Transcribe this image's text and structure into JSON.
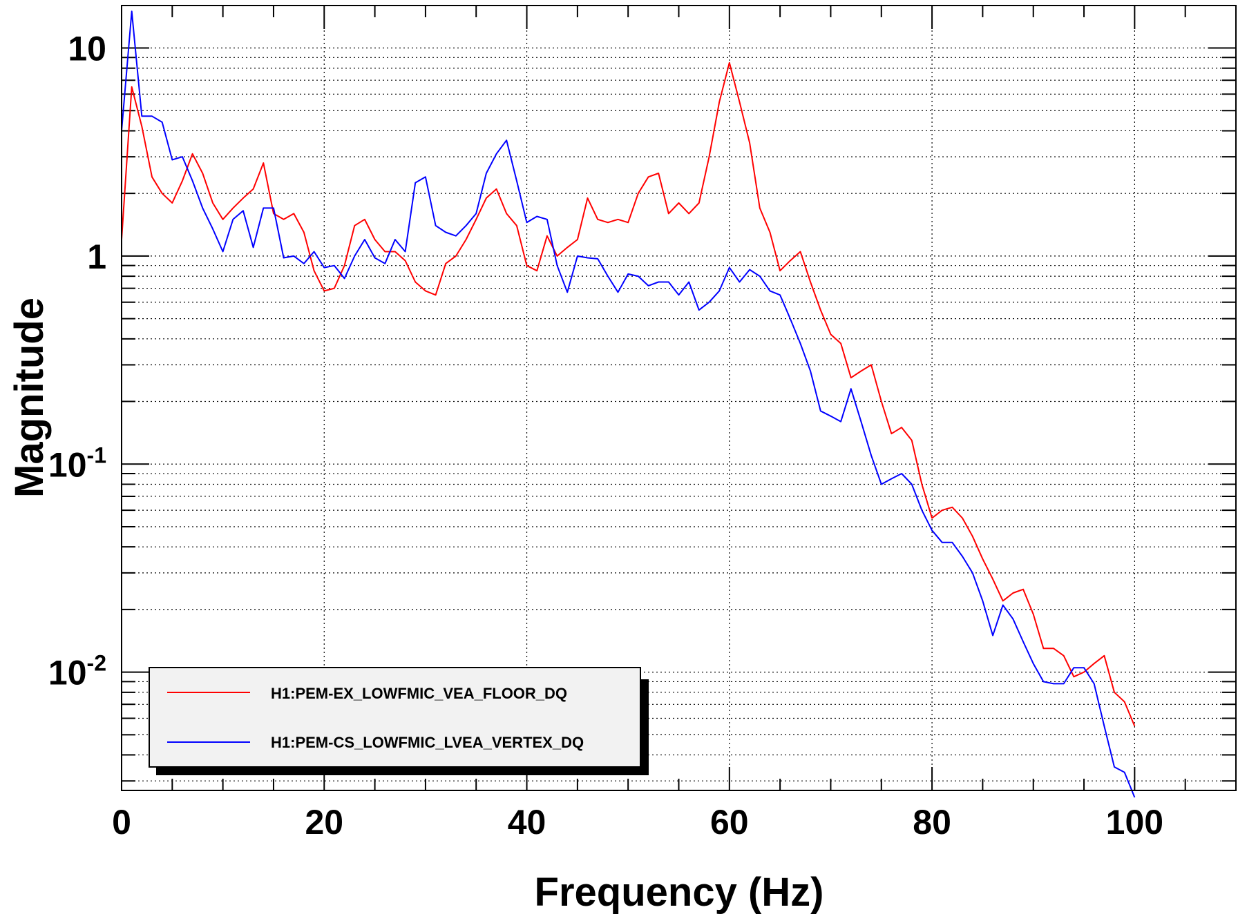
{
  "chart_data": {
    "type": "line",
    "xlabel": "Frequency (Hz)",
    "ylabel": "Magnitude",
    "xlim": [
      0,
      110
    ],
    "ylim": [
      0.0027,
      16
    ],
    "yscale": "log",
    "grid": true,
    "legend_position": "bottom-left",
    "x_ticks": [
      {
        "value": 0,
        "label": "0"
      },
      {
        "value": 20,
        "label": "20"
      },
      {
        "value": 40,
        "label": "40"
      },
      {
        "value": 60,
        "label": "60"
      },
      {
        "value": 80,
        "label": "80"
      },
      {
        "value": 100,
        "label": "100"
      }
    ],
    "y_ticks": [
      {
        "value": 10,
        "base": "10",
        "exp": ""
      },
      {
        "value": 1,
        "base": "1",
        "exp": ""
      },
      {
        "value": 0.1,
        "base": "10",
        "exp": "-1"
      },
      {
        "value": 0.01,
        "base": "10",
        "exp": "-2"
      }
    ],
    "series": [
      {
        "name": "H1:PEM-EX_LOWFMIC_VEA_FLOOR_DQ",
        "color": "#ff0000",
        "points": [
          [
            0,
            1.2
          ],
          [
            1,
            6.5
          ],
          [
            2,
            4.2
          ],
          [
            3,
            2.4
          ],
          [
            4,
            2.0
          ],
          [
            5,
            1.8
          ],
          [
            6,
            2.3
          ],
          [
            7,
            3.1
          ],
          [
            8,
            2.5
          ],
          [
            9,
            1.8
          ],
          [
            10,
            1.5
          ],
          [
            11,
            1.7
          ],
          [
            12,
            1.9
          ],
          [
            13,
            2.1
          ],
          [
            14,
            2.8
          ],
          [
            15,
            1.6
          ],
          [
            16,
            1.5
          ],
          [
            17,
            1.6
          ],
          [
            18,
            1.3
          ],
          [
            19,
            0.85
          ],
          [
            20,
            0.68
          ],
          [
            21,
            0.7
          ],
          [
            22,
            0.9
          ],
          [
            23,
            1.4
          ],
          [
            24,
            1.5
          ],
          [
            25,
            1.2
          ],
          [
            26,
            1.05
          ],
          [
            27,
            1.05
          ],
          [
            28,
            0.95
          ],
          [
            29,
            0.75
          ],
          [
            30,
            0.68
          ],
          [
            31,
            0.65
          ],
          [
            32,
            0.92
          ],
          [
            33,
            1.0
          ],
          [
            34,
            1.2
          ],
          [
            35,
            1.5
          ],
          [
            36,
            1.9
          ],
          [
            37,
            2.1
          ],
          [
            38,
            1.6
          ],
          [
            39,
            1.4
          ],
          [
            40,
            0.9
          ],
          [
            41,
            0.85
          ],
          [
            42,
            1.25
          ],
          [
            43,
            1.0
          ],
          [
            44,
            1.1
          ],
          [
            45,
            1.2
          ],
          [
            46,
            1.9
          ],
          [
            47,
            1.5
          ],
          [
            48,
            1.45
          ],
          [
            49,
            1.5
          ],
          [
            50,
            1.45
          ],
          [
            51,
            2.0
          ],
          [
            52,
            2.4
          ],
          [
            53,
            2.5
          ],
          [
            54,
            1.6
          ],
          [
            55,
            1.8
          ],
          [
            56,
            1.6
          ],
          [
            57,
            1.8
          ],
          [
            58,
            3.0
          ],
          [
            59,
            5.5
          ],
          [
            60,
            8.5
          ],
          [
            61,
            5.5
          ],
          [
            62,
            3.5
          ],
          [
            63,
            1.7
          ],
          [
            64,
            1.3
          ],
          [
            65,
            0.85
          ],
          [
            66,
            0.95
          ],
          [
            67,
            1.05
          ],
          [
            68,
            0.75
          ],
          [
            69,
            0.55
          ],
          [
            70,
            0.42
          ],
          [
            71,
            0.38
          ],
          [
            72,
            0.26
          ],
          [
            73,
            0.28
          ],
          [
            74,
            0.3
          ],
          [
            75,
            0.2
          ],
          [
            76,
            0.14
          ],
          [
            77,
            0.15
          ],
          [
            78,
            0.13
          ],
          [
            79,
            0.08
          ],
          [
            80,
            0.055
          ],
          [
            81,
            0.06
          ],
          [
            82,
            0.062
          ],
          [
            83,
            0.055
          ],
          [
            84,
            0.045
          ],
          [
            85,
            0.035
          ],
          [
            86,
            0.028
          ],
          [
            87,
            0.022
          ],
          [
            88,
            0.024
          ],
          [
            89,
            0.025
          ],
          [
            90,
            0.019
          ],
          [
            91,
            0.013
          ],
          [
            92,
            0.013
          ],
          [
            93,
            0.012
          ],
          [
            94,
            0.0095
          ],
          [
            95,
            0.01
          ],
          [
            96,
            0.011
          ],
          [
            97,
            0.012
          ],
          [
            98,
            0.008
          ],
          [
            99,
            0.0072
          ],
          [
            100,
            0.0055
          ]
        ]
      },
      {
        "name": "H1:PEM-CS_LOWFMIC_LVEA_VERTEX_DQ",
        "color": "#0000ff",
        "points": [
          [
            0,
            4.0
          ],
          [
            1,
            15.0
          ],
          [
            2,
            4.7
          ],
          [
            3,
            4.7
          ],
          [
            4,
            4.4
          ],
          [
            5,
            2.9
          ],
          [
            6,
            3.0
          ],
          [
            7,
            2.3
          ],
          [
            8,
            1.7
          ],
          [
            9,
            1.35
          ],
          [
            10,
            1.05
          ],
          [
            11,
            1.5
          ],
          [
            12,
            1.65
          ],
          [
            13,
            1.1
          ],
          [
            14,
            1.7
          ],
          [
            15,
            1.7
          ],
          [
            16,
            0.98
          ],
          [
            17,
            1.0
          ],
          [
            18,
            0.92
          ],
          [
            19,
            1.05
          ],
          [
            20,
            0.88
          ],
          [
            21,
            0.9
          ],
          [
            22,
            0.78
          ],
          [
            23,
            1.0
          ],
          [
            24,
            1.2
          ],
          [
            25,
            0.98
          ],
          [
            26,
            0.92
          ],
          [
            27,
            1.2
          ],
          [
            28,
            1.05
          ],
          [
            29,
            2.25
          ],
          [
            30,
            2.4
          ],
          [
            31,
            1.4
          ],
          [
            32,
            1.3
          ],
          [
            33,
            1.25
          ],
          [
            34,
            1.4
          ],
          [
            35,
            1.6
          ],
          [
            36,
            2.5
          ],
          [
            37,
            3.1
          ],
          [
            38,
            3.6
          ],
          [
            39,
            2.3
          ],
          [
            40,
            1.45
          ],
          [
            41,
            1.55
          ],
          [
            42,
            1.5
          ],
          [
            43,
            0.9
          ],
          [
            44,
            0.67
          ],
          [
            45,
            1.0
          ],
          [
            46,
            0.98
          ],
          [
            47,
            0.97
          ],
          [
            48,
            0.8
          ],
          [
            49,
            0.67
          ],
          [
            50,
            0.82
          ],
          [
            51,
            0.8
          ],
          [
            52,
            0.72
          ],
          [
            53,
            0.75
          ],
          [
            54,
            0.75
          ],
          [
            55,
            0.65
          ],
          [
            56,
            0.75
          ],
          [
            57,
            0.55
          ],
          [
            58,
            0.6
          ],
          [
            59,
            0.68
          ],
          [
            60,
            0.88
          ],
          [
            61,
            0.75
          ],
          [
            62,
            0.86
          ],
          [
            63,
            0.8
          ],
          [
            64,
            0.68
          ],
          [
            65,
            0.65
          ],
          [
            66,
            0.5
          ],
          [
            67,
            0.38
          ],
          [
            68,
            0.28
          ],
          [
            69,
            0.18
          ],
          [
            70,
            0.17
          ],
          [
            71,
            0.16
          ],
          [
            72,
            0.23
          ],
          [
            73,
            0.16
          ],
          [
            74,
            0.11
          ],
          [
            75,
            0.08
          ],
          [
            76,
            0.085
          ],
          [
            77,
            0.09
          ],
          [
            78,
            0.08
          ],
          [
            79,
            0.06
          ],
          [
            80,
            0.048
          ],
          [
            81,
            0.042
          ],
          [
            82,
            0.042
          ],
          [
            83,
            0.036
          ],
          [
            84,
            0.03
          ],
          [
            85,
            0.022
          ],
          [
            86,
            0.015
          ],
          [
            87,
            0.021
          ],
          [
            88,
            0.018
          ],
          [
            89,
            0.014
          ],
          [
            90,
            0.011
          ],
          [
            91,
            0.009
          ],
          [
            92,
            0.0088
          ],
          [
            93,
            0.0088
          ],
          [
            94,
            0.0105
          ],
          [
            95,
            0.0105
          ],
          [
            96,
            0.0088
          ],
          [
            97,
            0.0055
          ],
          [
            98,
            0.0035
          ],
          [
            99,
            0.0033
          ],
          [
            100,
            0.0025
          ]
        ]
      }
    ]
  }
}
